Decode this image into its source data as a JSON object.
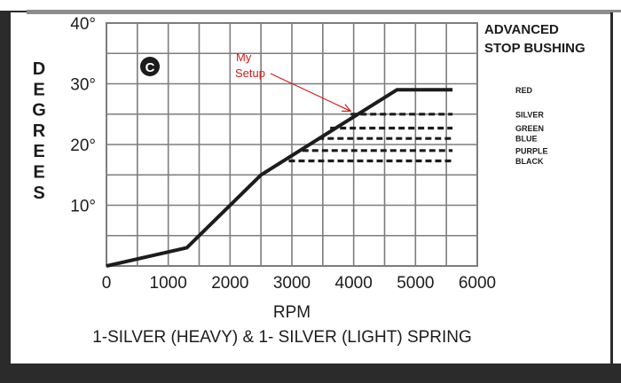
{
  "chart_data": {
    "type": "line",
    "title": "",
    "xlabel": "RPM",
    "ylabel": "DEGREES",
    "caption": "1-SILVER (HEAVY) & 1- SILVER (LIGHT) SPRING",
    "corner_title": [
      "ADVANCED",
      "STOP BUSHING"
    ],
    "badge": "C",
    "xlim": [
      0,
      6000
    ],
    "ylim": [
      0,
      40
    ],
    "x_ticks": [
      {
        "value": 0,
        "label": "0"
      },
      {
        "value": 1000,
        "label": "1000"
      },
      {
        "value": 2000,
        "label": "2000"
      },
      {
        "value": 3000,
        "label": "3000"
      },
      {
        "value": 4000,
        "label": "4000"
      },
      {
        "value": 5000,
        "label": "5000"
      },
      {
        "value": 6000,
        "label": "6000"
      }
    ],
    "y_ticks": [
      {
        "value": 10,
        "label": "10°"
      },
      {
        "value": 20,
        "label": "20°"
      },
      {
        "value": 30,
        "label": "30°"
      },
      {
        "value": 40,
        "label": "40°"
      }
    ],
    "grid": true,
    "grid_x_step": 500,
    "grid_y_step": 5,
    "series": [
      {
        "name": "RED",
        "style": "solid",
        "x": [
          0,
          1300,
          2500,
          4700,
          5600
        ],
        "y": [
          0,
          3,
          15,
          29,
          29
        ]
      },
      {
        "name": "SILVER",
        "style": "dashed",
        "x": [
          3950,
          5600
        ],
        "y": [
          25,
          25
        ]
      },
      {
        "name": "GREEN",
        "style": "dashed",
        "x": [
          3620,
          5600
        ],
        "y": [
          22.7,
          22.7
        ]
      },
      {
        "name": "BLUE",
        "style": "dashed",
        "x": [
          3420,
          5600
        ],
        "y": [
          21,
          21
        ]
      },
      {
        "name": "PURPLE",
        "style": "dashed",
        "x": [
          3170,
          5600
        ],
        "y": [
          19,
          19
        ]
      },
      {
        "name": "BLACK",
        "style": "dashed",
        "x": [
          2950,
          5600
        ],
        "y": [
          17.3,
          17.3
        ]
      }
    ],
    "annotation": {
      "lines": [
        "My",
        "Setup"
      ],
      "color": "#d61a1a",
      "target": {
        "x": 3950,
        "y": 25.5
      }
    }
  }
}
